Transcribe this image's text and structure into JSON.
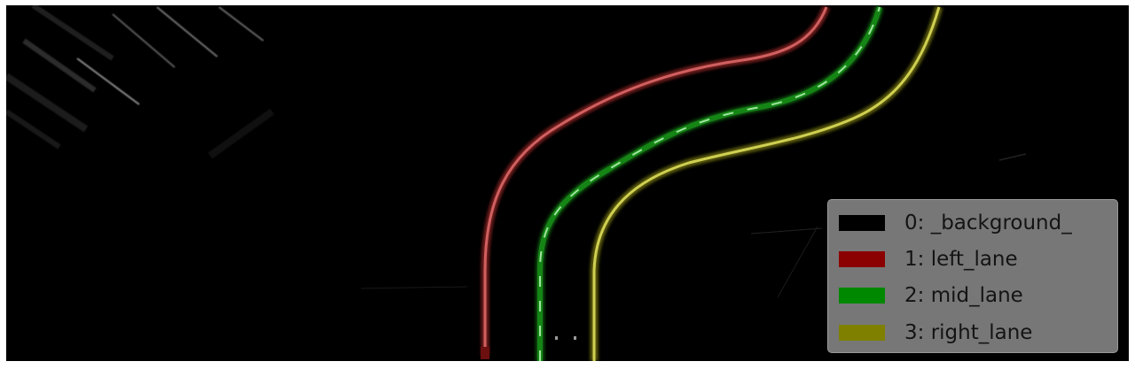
{
  "legend": {
    "items": [
      {
        "label": "0: _background_",
        "color": "#000000"
      },
      {
        "label": "1: left_lane",
        "color": "#8b0000"
      },
      {
        "label": "2: mid_lane",
        "color": "#008800"
      },
      {
        "label": "3: right_lane",
        "color": "#808000"
      }
    ]
  },
  "colors": {
    "background": "#000000",
    "left_lane_stroke": "#c85454",
    "mid_lane_stroke": "#1e8a1e",
    "right_lane_stroke": "#c9c94a",
    "legend_box": "#808080"
  }
}
